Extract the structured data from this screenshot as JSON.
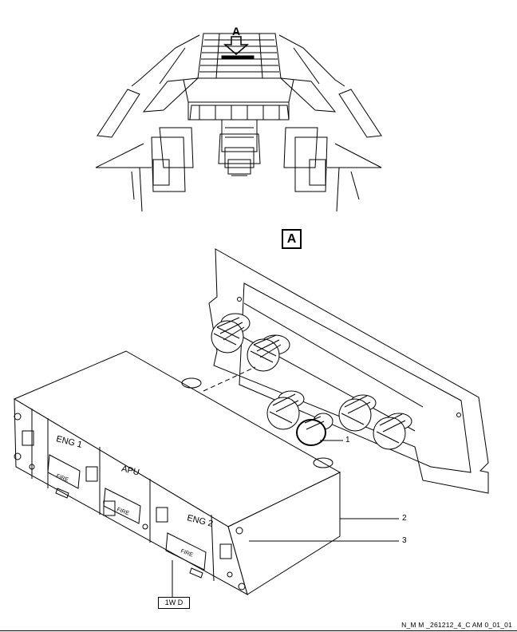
{
  "figure": {
    "view_arrow_label": "A",
    "view_label": "A",
    "callouts": [
      "1",
      "2",
      "3"
    ],
    "forward_label": "1W D",
    "reference": "N_M M _261212_4_C AM 0_01_01"
  },
  "panel_legends": {
    "eng1": "ENG 1",
    "apu": "APU",
    "eng2": "ENG 2",
    "fire": "FIRE"
  }
}
